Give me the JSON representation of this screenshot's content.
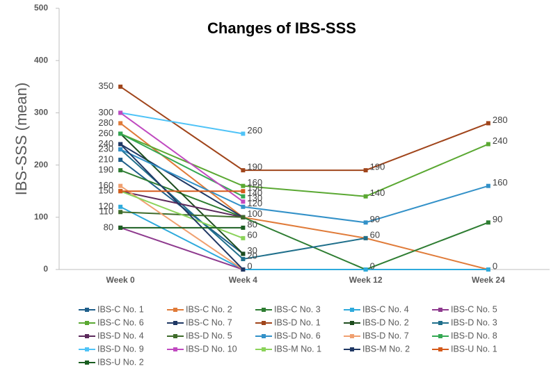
{
  "chart_data": {
    "type": "line",
    "title": "Changes of IBS-SSS",
    "y_label": "IBS-SSS (mean)",
    "categories": [
      "Week 0",
      "Week 4",
      "Week 12",
      "Week 24"
    ],
    "ylim": [
      0,
      500
    ],
    "yticks": [
      0,
      100,
      200,
      300,
      400,
      500
    ],
    "series": [
      {
        "name": "IBS-C No. 1",
        "color": "#1f5f8b",
        "values": [
          210,
          30,
          null,
          null
        ]
      },
      {
        "name": "IBS-C No. 2",
        "color": "#e07b39",
        "values": [
          280,
          100,
          60,
          0
        ]
      },
      {
        "name": "IBS-C No. 3",
        "color": "#2e7d32",
        "values": [
          190,
          100,
          0,
          90
        ]
      },
      {
        "name": "IBS-C No. 4",
        "color": "#2eaadc",
        "values": [
          120,
          0,
          0,
          0
        ]
      },
      {
        "name": "IBS-C No. 5",
        "color": "#8e3a8e",
        "values": [
          80,
          0,
          null,
          null
        ]
      },
      {
        "name": "IBS-C No. 6",
        "color": "#5aa832",
        "values": [
          260,
          160,
          140,
          240
        ]
      },
      {
        "name": "IBS-C No. 7",
        "color": "#1f3864",
        "values": [
          240,
          100,
          null,
          null
        ]
      },
      {
        "name": "IBS-D No. 1",
        "color": "#a0451b",
        "values": [
          350,
          190,
          190,
          280
        ]
      },
      {
        "name": "IBS-D No. 2",
        "color": "#1e4d1e",
        "values": [
          260,
          30,
          null,
          null
        ]
      },
      {
        "name": "IBS-D No. 3",
        "color": "#1f6f8b",
        "values": [
          230,
          20,
          60,
          null
        ]
      },
      {
        "name": "IBS-D No. 4",
        "color": "#5c2a5c",
        "values": [
          150,
          100,
          null,
          null
        ]
      },
      {
        "name": "IBS-D No. 5",
        "color": "#3e6b2a",
        "values": [
          110,
          100,
          null,
          null
        ]
      },
      {
        "name": "IBS-D No. 6",
        "color": "#3391c8",
        "values": [
          230,
          120,
          90,
          160
        ]
      },
      {
        "name": "IBS-D No. 7",
        "color": "#f0a070",
        "values": [
          160,
          0,
          null,
          null
        ]
      },
      {
        "name": "IBS-D No. 8",
        "color": "#34a853",
        "values": [
          260,
          140,
          null,
          null
        ]
      },
      {
        "name": "IBS-D No. 9",
        "color": "#4fc3f7",
        "values": [
          300,
          260,
          null,
          null
        ]
      },
      {
        "name": "IBS-D No. 10",
        "color": "#c04ac0",
        "values": [
          300,
          130,
          null,
          null
        ]
      },
      {
        "name": "IBS-M No. 1",
        "color": "#8bd35a",
        "values": [
          150,
          60,
          null,
          null
        ]
      },
      {
        "name": "IBS-M No. 2",
        "color": "#203864",
        "values": [
          240,
          0,
          null,
          null
        ]
      },
      {
        "name": "IBS-U No. 1",
        "color": "#d55a1b",
        "values": [
          150,
          150,
          null,
          null
        ]
      },
      {
        "name": "IBS-U No. 2",
        "color": "#1a5e20",
        "values": [
          80,
          80,
          null,
          null
        ]
      }
    ]
  }
}
